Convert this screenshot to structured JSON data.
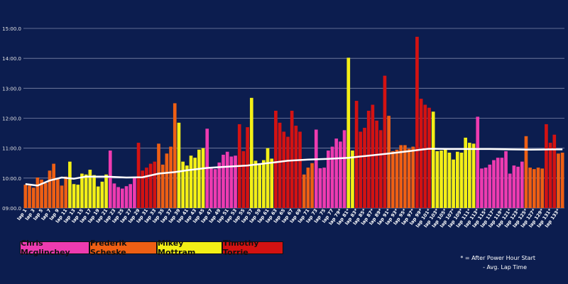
{
  "chart_data": {
    "type": "bar",
    "ylim": [
      "09:00.0",
      "15:00.0"
    ],
    "yticks": [
      "09:00.0",
      "10:00.0",
      "11:00.0",
      "12:00.0",
      "13:00.0",
      "14:00.0",
      "15:00.0"
    ],
    "series": [
      {
        "name": "Chris Mcglinchey",
        "color": "#ee3bb0"
      },
      {
        "name": "Frederik Scheske",
        "color": "#ee5f14"
      },
      {
        "name": "Mikey Mottram",
        "color": "#f3ef16"
      },
      {
        "name": "Timothy Torrie",
        "color": "#d31212"
      }
    ],
    "categories": [
      "lap 1",
      "lap 3",
      "lap 5",
      "lap 7",
      "lap 9",
      "lap 11",
      "lap 13",
      "lap 15",
      "lap 17",
      "lap 19",
      "lap 21",
      "lap 23",
      "lap 25",
      "lap 27",
      "lap 29",
      "lap 31",
      "lap 33",
      "lap 35",
      "lap 37",
      "lap 39",
      "lap 41",
      "lap 43",
      "lap 45",
      "lap 47",
      "lap 49",
      "lap 51",
      "lap 53",
      "lap 55",
      "lap 57",
      "lap 59",
      "lap 61",
      "lap 63",
      "lap 65",
      "lap 67",
      "lap 69",
      "lap 71",
      "lap 73",
      "lap 75",
      "lap 77",
      "lap 79*",
      "lap 81*",
      "lap 83*",
      "lap 85*",
      "lap 87*",
      "lap 89*",
      "lap 91*",
      "lap 93*",
      "lap 95*",
      "lap 97*",
      "lap 99*",
      "lap 101*",
      "lap 103*",
      "lap 105*",
      "lap 107*",
      "lap 109*",
      "lap 111*",
      "lap 113*",
      "lap 115*",
      "lap 117*",
      "lap 119*",
      "lap 121*",
      "lap 123*",
      "lap 125*",
      "lap 127*",
      "lap 129*",
      "lap 131*",
      "lap 133*"
    ],
    "laps": [
      {
        "v": 9.78,
        "r": 1
      },
      {
        "v": 9.75,
        "r": 1
      },
      {
        "v": 9.68,
        "r": 1
      },
      {
        "v": 10.02,
        "r": 1
      },
      {
        "v": 9.95,
        "r": 1
      },
      {
        "v": 9.83,
        "r": 1
      },
      {
        "v": 10.25,
        "r": 1
      },
      {
        "v": 10.48,
        "r": 1
      },
      {
        "v": 9.97,
        "r": 1
      },
      {
        "v": 9.75,
        "r": 1
      },
      {
        "v": 10.05,
        "r": 1
      },
      {
        "v": 10.55,
        "r": 2
      },
      {
        "v": 9.8,
        "r": 2
      },
      {
        "v": 9.78,
        "r": 2
      },
      {
        "v": 10.15,
        "r": 2
      },
      {
        "v": 10.12,
        "r": 2
      },
      {
        "v": 10.28,
        "r": 2
      },
      {
        "v": 10.1,
        "r": 2
      },
      {
        "v": 9.72,
        "r": 2
      },
      {
        "v": 9.88,
        "r": 2
      },
      {
        "v": 10.12,
        "r": 2
      },
      {
        "v": 10.92,
        "r": 0
      },
      {
        "v": 9.82,
        "r": 0
      },
      {
        "v": 9.7,
        "r": 0
      },
      {
        "v": 9.65,
        "r": 0
      },
      {
        "v": 9.73,
        "r": 0
      },
      {
        "v": 9.8,
        "r": 0
      },
      {
        "v": 10.0,
        "r": 0
      },
      {
        "v": 11.18,
        "r": 3
      },
      {
        "v": 10.25,
        "r": 3
      },
      {
        "v": 10.35,
        "r": 3
      },
      {
        "v": 10.48,
        "r": 3
      },
      {
        "v": 10.55,
        "r": 3
      },
      {
        "v": 11.15,
        "r": 1
      },
      {
        "v": 10.45,
        "r": 1
      },
      {
        "v": 10.82,
        "r": 1
      },
      {
        "v": 11.05,
        "r": 1
      },
      {
        "v": 12.5,
        "r": 1
      },
      {
        "v": 11.85,
        "r": 2
      },
      {
        "v": 10.55,
        "r": 2
      },
      {
        "v": 10.42,
        "r": 2
      },
      {
        "v": 10.75,
        "r": 2
      },
      {
        "v": 10.68,
        "r": 2
      },
      {
        "v": 10.95,
        "r": 2
      },
      {
        "v": 11.0,
        "r": 2
      },
      {
        "v": 11.65,
        "r": 0
      },
      {
        "v": 10.32,
        "r": 0
      },
      {
        "v": 10.3,
        "r": 0
      },
      {
        "v": 10.52,
        "r": 0
      },
      {
        "v": 10.78,
        "r": 0
      },
      {
        "v": 10.88,
        "r": 0
      },
      {
        "v": 10.72,
        "r": 0
      },
      {
        "v": 10.75,
        "r": 0
      },
      {
        "v": 11.8,
        "r": 3
      },
      {
        "v": 10.9,
        "r": 3
      },
      {
        "v": 11.7,
        "r": 3
      },
      {
        "v": 12.68,
        "r": 2
      },
      {
        "v": 10.58,
        "r": 2
      },
      {
        "v": 10.45,
        "r": 2
      },
      {
        "v": 10.6,
        "r": 2
      },
      {
        "v": 11.0,
        "r": 2
      },
      {
        "v": 10.65,
        "r": 2
      },
      {
        "v": 12.25,
        "r": 3
      },
      {
        "v": 11.85,
        "r": 3
      },
      {
        "v": 11.55,
        "r": 3
      },
      {
        "v": 11.38,
        "r": 3
      },
      {
        "v": 12.25,
        "r": 3
      },
      {
        "v": 11.75,
        "r": 3
      },
      {
        "v": 11.55,
        "r": 3
      },
      {
        "v": 10.12,
        "r": 1
      },
      {
        "v": 10.35,
        "r": 1
      },
      {
        "v": 10.5,
        "r": 1
      },
      {
        "v": 11.62,
        "r": 0
      },
      {
        "v": 10.33,
        "r": 0
      },
      {
        "v": 10.35,
        "r": 0
      },
      {
        "v": 10.92,
        "r": 0
      },
      {
        "v": 11.05,
        "r": 0
      },
      {
        "v": 11.32,
        "r": 0
      },
      {
        "v": 11.22,
        "r": 0
      },
      {
        "v": 11.6,
        "r": 0
      },
      {
        "v": 14.02,
        "r": 2
      },
      {
        "v": 10.92,
        "r": 2
      },
      {
        "v": 12.58,
        "r": 3
      },
      {
        "v": 11.55,
        "r": 3
      },
      {
        "v": 11.68,
        "r": 3
      },
      {
        "v": 12.25,
        "r": 3
      },
      {
        "v": 12.45,
        "r": 3
      },
      {
        "v": 11.92,
        "r": 3
      },
      {
        "v": 11.6,
        "r": 3
      },
      {
        "v": 13.42,
        "r": 3
      },
      {
        "v": 12.08,
        "r": 1
      },
      {
        "v": 10.9,
        "r": 1
      },
      {
        "v": 10.95,
        "r": 1
      },
      {
        "v": 11.1,
        "r": 1
      },
      {
        "v": 11.1,
        "r": 1
      },
      {
        "v": 10.98,
        "r": 1
      },
      {
        "v": 11.05,
        "r": 1
      },
      {
        "v": 14.72,
        "r": 3
      },
      {
        "v": 12.65,
        "r": 3
      },
      {
        "v": 12.45,
        "r": 3
      },
      {
        "v": 12.35,
        "r": 3
      },
      {
        "v": 12.22,
        "r": 2
      },
      {
        "v": 10.9,
        "r": 2
      },
      {
        "v": 10.92,
        "r": 2
      },
      {
        "v": 10.95,
        "r": 2
      },
      {
        "v": 10.85,
        "r": 2
      },
      {
        "v": 10.62,
        "r": 2
      },
      {
        "v": 10.88,
        "r": 2
      },
      {
        "v": 10.85,
        "r": 2
      },
      {
        "v": 11.35,
        "r": 2
      },
      {
        "v": 11.18,
        "r": 2
      },
      {
        "v": 11.15,
        "r": 2
      },
      {
        "v": 12.05,
        "r": 0
      },
      {
        "v": 10.32,
        "r": 0
      },
      {
        "v": 10.35,
        "r": 0
      },
      {
        "v": 10.45,
        "r": 0
      },
      {
        "v": 10.6,
        "r": 0
      },
      {
        "v": 10.68,
        "r": 0
      },
      {
        "v": 10.68,
        "r": 0
      },
      {
        "v": 10.9,
        "r": 0
      },
      {
        "v": 10.15,
        "r": 0
      },
      {
        "v": 10.42,
        "r": 0
      },
      {
        "v": 10.38,
        "r": 0
      },
      {
        "v": 10.55,
        "r": 0
      },
      {
        "v": 11.4,
        "r": 1
      },
      {
        "v": 10.35,
        "r": 1
      },
      {
        "v": 10.3,
        "r": 1
      },
      {
        "v": 10.35,
        "r": 1
      },
      {
        "v": 10.32,
        "r": 1
      },
      {
        "v": 11.8,
        "r": 3
      },
      {
        "v": 11.18,
        "r": 3
      },
      {
        "v": 11.45,
        "r": 3
      },
      {
        "v": 10.82,
        "r": 1
      },
      {
        "v": 10.85,
        "r": 1
      }
    ],
    "avg_line": [
      [
        0,
        9.8
      ],
      [
        3,
        9.75
      ],
      [
        6,
        9.92
      ],
      [
        9,
        10.02
      ],
      [
        12,
        9.98
      ],
      [
        15,
        10.05
      ],
      [
        20,
        10.05
      ],
      [
        25,
        10.02
      ],
      [
        29,
        10.03
      ],
      [
        33,
        10.15
      ],
      [
        37,
        10.2
      ],
      [
        40,
        10.26
      ],
      [
        45,
        10.34
      ],
      [
        50,
        10.38
      ],
      [
        55,
        10.42
      ],
      [
        60,
        10.5
      ],
      [
        65,
        10.58
      ],
      [
        70,
        10.62
      ],
      [
        75,
        10.64
      ],
      [
        80,
        10.68
      ],
      [
        85,
        10.75
      ],
      [
        90,
        10.82
      ],
      [
        95,
        10.9
      ],
      [
        98,
        10.95
      ],
      [
        100,
        10.98
      ],
      [
        105,
        10.97
      ],
      [
        110,
        10.97
      ],
      [
        115,
        10.97
      ],
      [
        120,
        10.96
      ],
      [
        125,
        10.95
      ],
      [
        130,
        10.96
      ],
      [
        133,
        10.96
      ]
    ],
    "notes": [
      "* = After Power Hour Start",
      "- Avg. Lap Time"
    ]
  }
}
